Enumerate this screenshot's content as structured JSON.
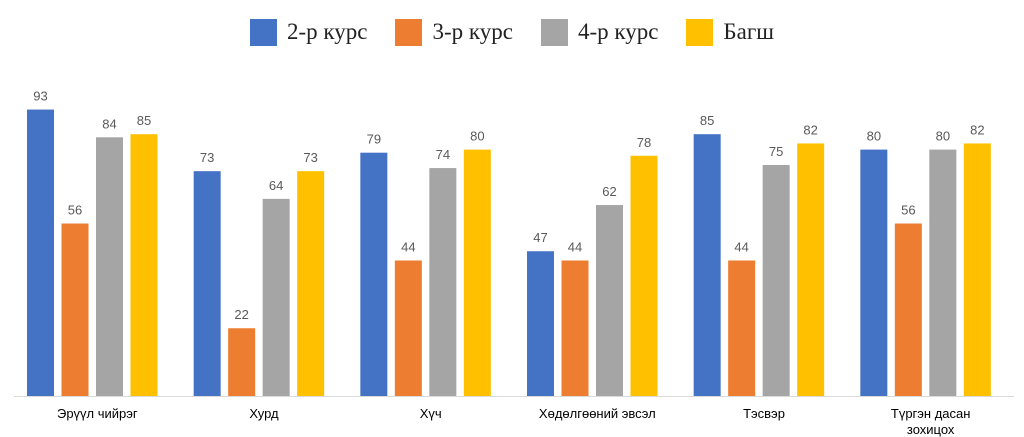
{
  "chart_data": {
    "type": "bar",
    "categories": [
      "Эрүүл чийрэг",
      "Хурд",
      "Хүч",
      "Хөдөлгөөний эвсэл",
      "Тэсвэр",
      "Түргэн дасан зохицох"
    ],
    "category_lines": [
      [
        "Эрүүл чийрэг"
      ],
      [
        "Хурд"
      ],
      [
        "Хүч"
      ],
      [
        "Хөдөлгөөний эвсэл"
      ],
      [
        "Тэсвэр"
      ],
      [
        "Түргэн дасан",
        "зохицох"
      ]
    ],
    "series": [
      {
        "name": "2-р курс",
        "color": "#4472C4",
        "values": [
          93,
          73,
          79,
          47,
          85,
          80
        ]
      },
      {
        "name": "3-р курс",
        "color": "#ED7D31",
        "values": [
          56,
          22,
          44,
          44,
          44,
          56
        ]
      },
      {
        "name": "4-р курс",
        "color": "#A5A5A5",
        "values": [
          84,
          64,
          74,
          62,
          75,
          80
        ]
      },
      {
        "name": "Багш",
        "color": "#FFC000",
        "values": [
          85,
          73,
          80,
          78,
          82,
          82
        ]
      }
    ],
    "ylim": [
      0,
      100
    ],
    "grid": false,
    "legend_position": "top"
  }
}
